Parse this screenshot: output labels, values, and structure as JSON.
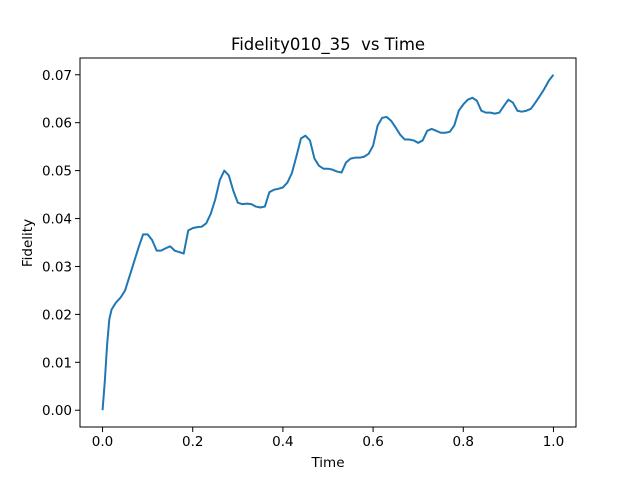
{
  "chart_data": {
    "type": "line",
    "title": "Fidelity010_35  vs Time",
    "x_label": "Time",
    "y_label": "Fidelity",
    "x": [
      0,
      0.005,
      0.01,
      0.015,
      0.02,
      0.03,
      0.04,
      0.05,
      0.06,
      0.07,
      0.08,
      0.09,
      0.1,
      0.11,
      0.12,
      0.13,
      0.14,
      0.15,
      0.16,
      0.17,
      0.18,
      0.19,
      0.2,
      0.21,
      0.22,
      0.23,
      0.24,
      0.25,
      0.26,
      0.27,
      0.28,
      0.29,
      0.3,
      0.31,
      0.32,
      0.33,
      0.34,
      0.35,
      0.36,
      0.37,
      0.38,
      0.39,
      0.4,
      0.41,
      0.42,
      0.43,
      0.44,
      0.45,
      0.46,
      0.47,
      0.48,
      0.49,
      0.5,
      0.51,
      0.52,
      0.53,
      0.54,
      0.55,
      0.56,
      0.57,
      0.58,
      0.59,
      0.6,
      0.61,
      0.62,
      0.63,
      0.64,
      0.65,
      0.66,
      0.67,
      0.68,
      0.69,
      0.7,
      0.71,
      0.72,
      0.73,
      0.74,
      0.75,
      0.76,
      0.77,
      0.78,
      0.79,
      0.8,
      0.81,
      0.82,
      0.83,
      0.84,
      0.85,
      0.86,
      0.87,
      0.88,
      0.89,
      0.9,
      0.91,
      0.92,
      0.93,
      0.94,
      0.95,
      0.96,
      0.97,
      0.98,
      0.99,
      1.0
    ],
    "series": [
      {
        "name": "Fidelity",
        "color": "#1f77b4",
        "values": [
          0,
          0.006,
          0.0135,
          0.019,
          0.021,
          0.0225,
          0.0235,
          0.025,
          0.028,
          0.031,
          0.034,
          0.0367,
          0.0367,
          0.0355,
          0.0333,
          0.0333,
          0.0338,
          0.0342,
          0.0333,
          0.033,
          0.0327,
          0.0375,
          0.038,
          0.0382,
          0.0383,
          0.039,
          0.041,
          0.044,
          0.048,
          0.05,
          0.049,
          0.0458,
          0.0433,
          0.043,
          0.0431,
          0.043,
          0.0425,
          0.0423,
          0.0425,
          0.0455,
          0.046,
          0.0462,
          0.0465,
          0.0475,
          0.0495,
          0.053,
          0.0567,
          0.0573,
          0.0563,
          0.0525,
          0.051,
          0.0504,
          0.0504,
          0.0502,
          0.0498,
          0.0496,
          0.0517,
          0.0525,
          0.0527,
          0.0527,
          0.0529,
          0.0535,
          0.0552,
          0.0594,
          0.061,
          0.0612,
          0.0604,
          0.059,
          0.0575,
          0.0565,
          0.0565,
          0.0563,
          0.0558,
          0.0563,
          0.0583,
          0.0587,
          0.0583,
          0.0579,
          0.0579,
          0.0581,
          0.0594,
          0.0625,
          0.0638,
          0.0648,
          0.0652,
          0.0646,
          0.0625,
          0.0621,
          0.0621,
          0.0619,
          0.0621,
          0.0635,
          0.0648,
          0.0642,
          0.0625,
          0.0623,
          0.0625,
          0.0629,
          0.0642,
          0.0656,
          0.0671,
          0.0688,
          0.07
        ]
      }
    ],
    "xlim": [
      -0.05,
      1.05
    ],
    "xticks": [
      {
        "value": 0,
        "label": "0.0"
      },
      0.2,
      0.4,
      0.6,
      0.8,
      {
        "value": 1,
        "label": "1.0"
      }
    ],
    "ylim": [
      -0.0035,
      0.0735
    ],
    "yticks": [
      {
        "value": 0,
        "label": "0.00"
      },
      0.01,
      0.02,
      0.03,
      0.04,
      0.05,
      0.06,
      0.07
    ]
  }
}
